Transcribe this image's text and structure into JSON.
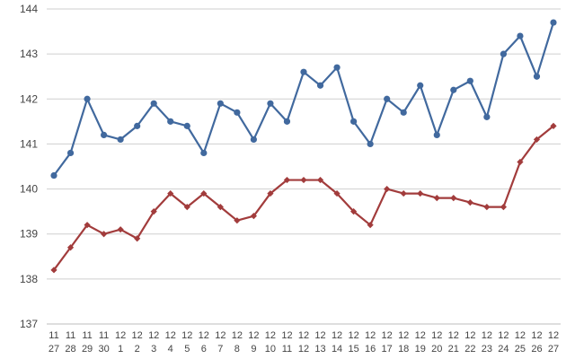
{
  "chart_data": {
    "type": "line",
    "title": "",
    "xlabel": "",
    "ylabel": "",
    "ylim": [
      137,
      144
    ],
    "yticks": [
      137,
      138,
      139,
      140,
      141,
      142,
      143,
      144
    ],
    "grid": true,
    "legend": "none",
    "categories": [
      [
        "11",
        "27"
      ],
      [
        "11",
        "28"
      ],
      [
        "11",
        "29"
      ],
      [
        "11",
        "30"
      ],
      [
        "12",
        "1"
      ],
      [
        "12",
        "2"
      ],
      [
        "12",
        "3"
      ],
      [
        "12",
        "4"
      ],
      [
        "12",
        "5"
      ],
      [
        "12",
        "6"
      ],
      [
        "12",
        "7"
      ],
      [
        "12",
        "8"
      ],
      [
        "12",
        "9"
      ],
      [
        "12",
        "10"
      ],
      [
        "12",
        "11"
      ],
      [
        "12",
        "12"
      ],
      [
        "12",
        "13"
      ],
      [
        "12",
        "14"
      ],
      [
        "12",
        "15"
      ],
      [
        "12",
        "16"
      ],
      [
        "12",
        "17"
      ],
      [
        "12",
        "18"
      ],
      [
        "12",
        "19"
      ],
      [
        "12",
        "20"
      ],
      [
        "12",
        "21"
      ],
      [
        "12",
        "22"
      ],
      [
        "12",
        "23"
      ],
      [
        "12",
        "24"
      ],
      [
        "12",
        "25"
      ],
      [
        "12",
        "26"
      ],
      [
        "12",
        "27"
      ]
    ],
    "series": [
      {
        "color": "#41699e",
        "marker": "circle",
        "values": [
          140.3,
          140.8,
          142.0,
          141.2,
          141.1,
          141.4,
          141.9,
          141.5,
          141.4,
          140.8,
          141.9,
          141.7,
          141.1,
          141.9,
          141.5,
          142.6,
          142.3,
          142.7,
          141.5,
          141.0,
          142.0,
          141.7,
          142.3,
          141.2,
          142.2,
          142.4,
          141.6,
          143.0,
          143.4,
          142.5,
          143.7
        ]
      },
      {
        "color": "#a23c3c",
        "marker": "diamond",
        "values": [
          138.2,
          138.7,
          139.2,
          139.0,
          139.1,
          138.9,
          139.5,
          139.9,
          139.6,
          139.9,
          139.6,
          139.3,
          139.4,
          139.9,
          140.2,
          140.2,
          140.2,
          139.9,
          139.5,
          139.2,
          140.0,
          139.9,
          139.9,
          139.8,
          139.8,
          139.7,
          139.6,
          139.6,
          140.6,
          141.1,
          141.4
        ]
      }
    ]
  }
}
